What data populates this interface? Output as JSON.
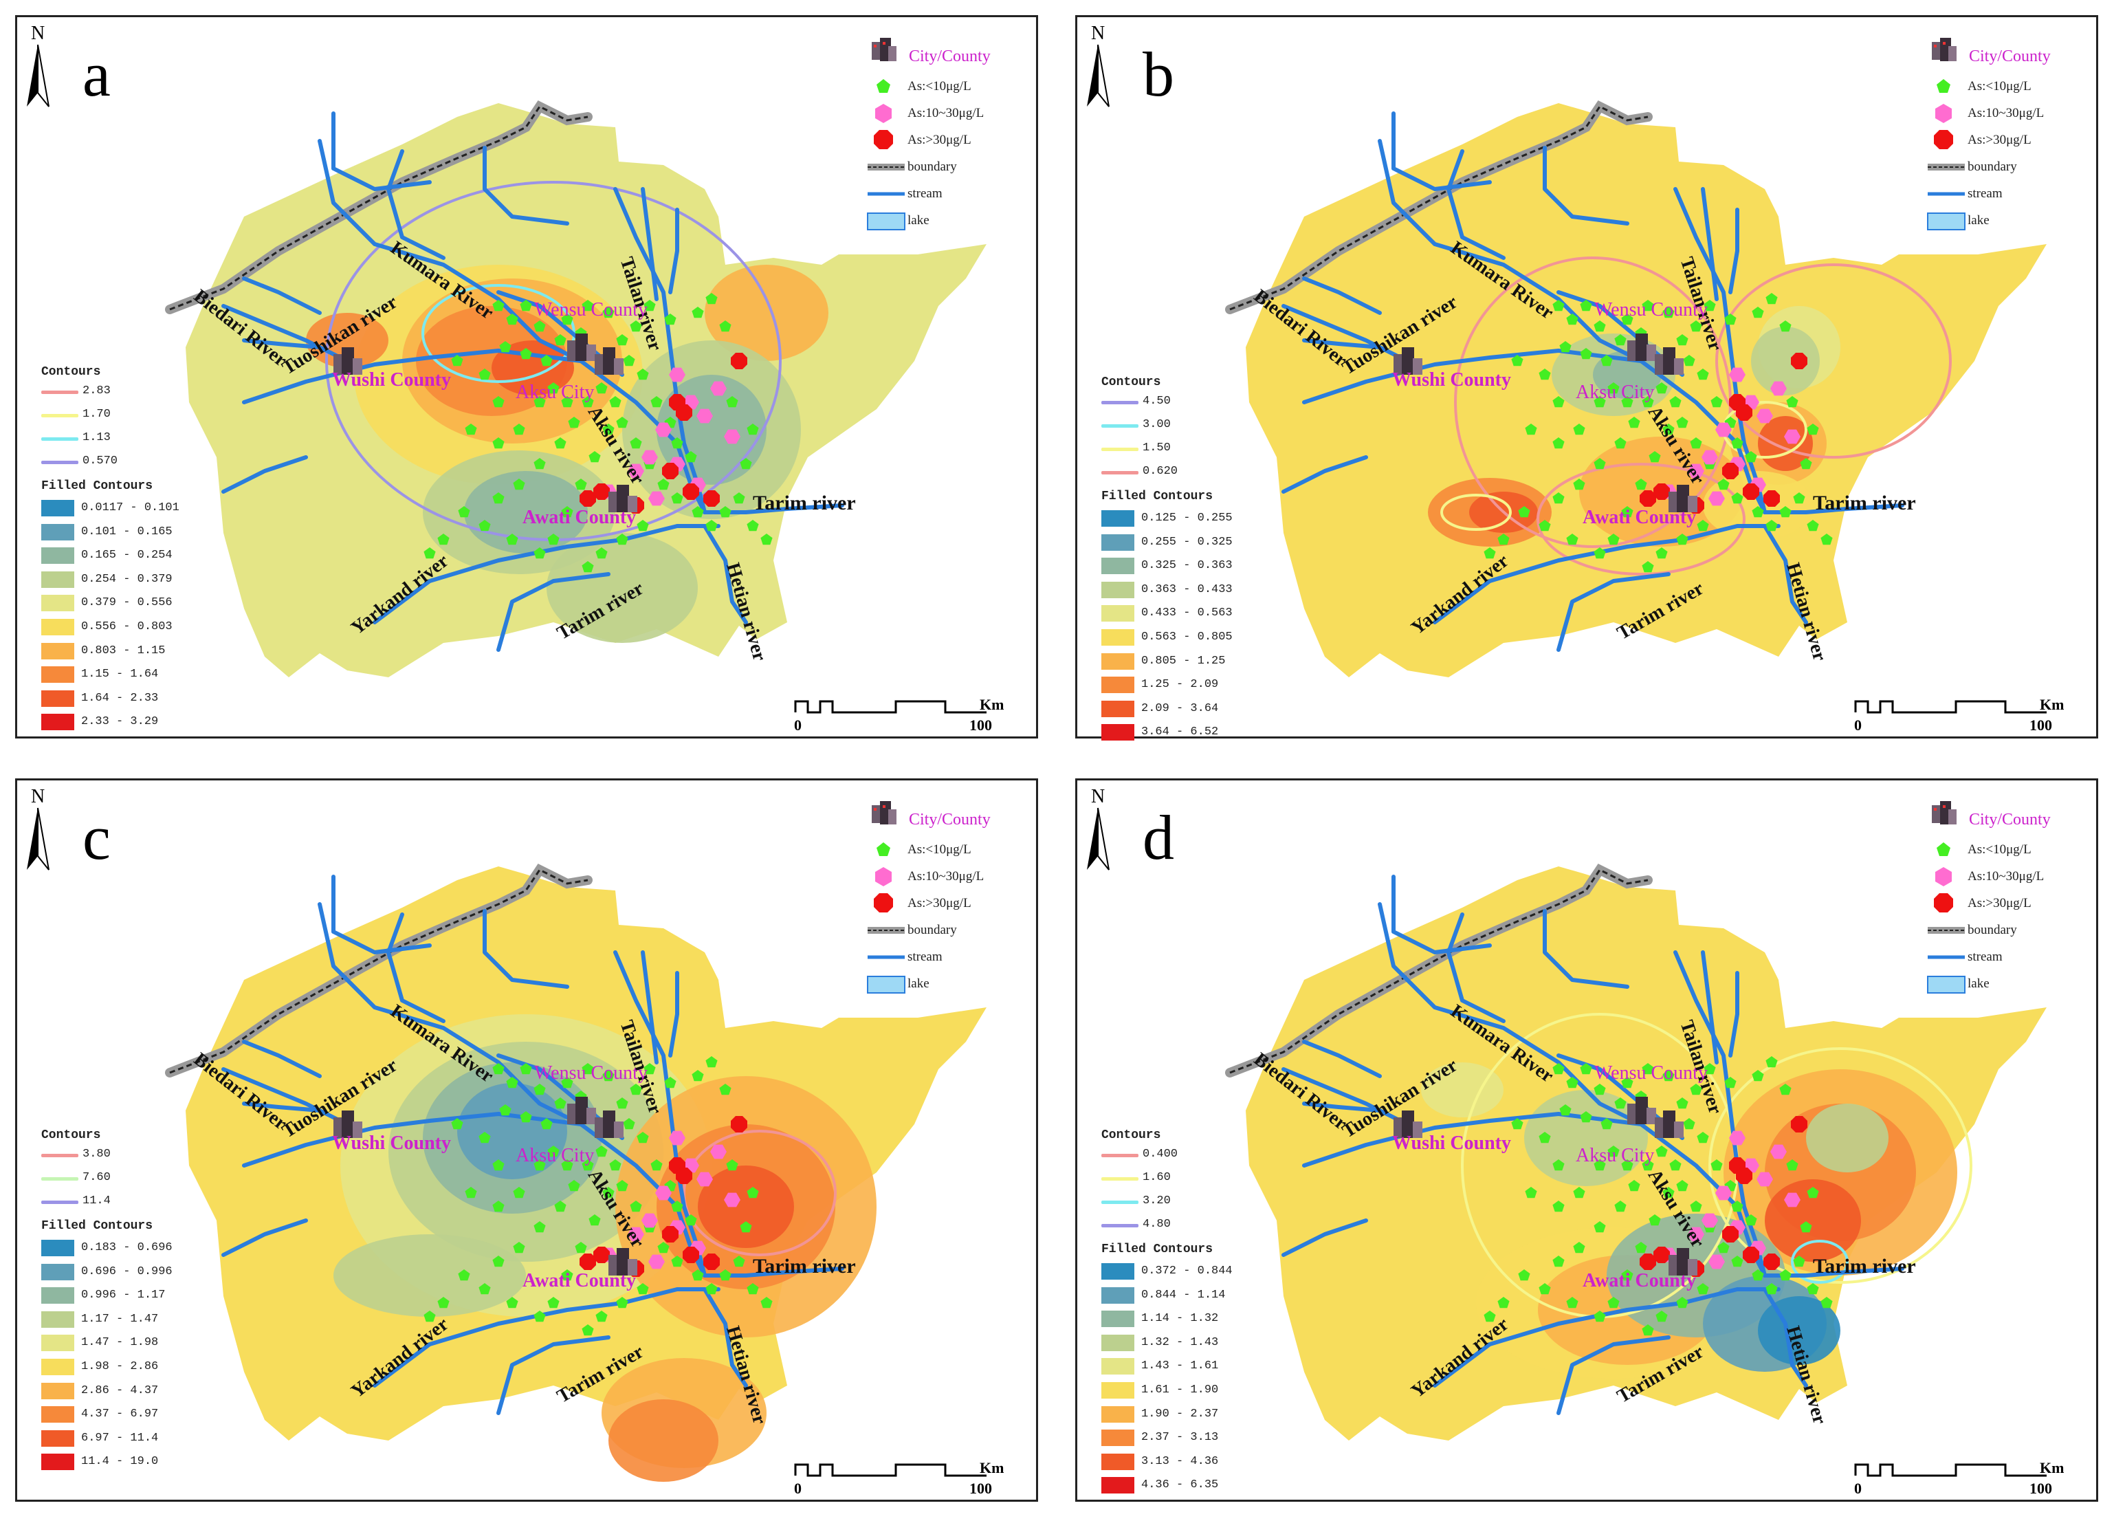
{
  "legend_common": {
    "city": "City/County",
    "as_low": "As:<10μg/L",
    "as_mid": "As:10~30μg/L",
    "as_high": "As:>30μg/L",
    "boundary": "boundary",
    "stream": "stream",
    "lake": "lake"
  },
  "north": "N",
  "scale": {
    "zero": "0",
    "hundred": "100",
    "unit": "Km"
  },
  "labels": {
    "contours": "Contours",
    "filled": "Filled Contours",
    "kumara": "Kumara River",
    "tuoshikan": "Tuoshikan river",
    "biedari": "Biedari River",
    "tailan": "Tailan river",
    "aksu_river": "Aksu river",
    "tarim1": "Tarim river",
    "tarim2": "Tarim river",
    "yarkand": "Yarkand river",
    "hetian": "Hetian river",
    "wushi": "Wushi County",
    "wensu": "Wensu County",
    "aksu_city": "Aksu City",
    "awati": "Awati County"
  },
  "colors": {
    "fill_ramp": [
      "#2b8cbe",
      "#5f9fb8",
      "#8fb7a0",
      "#bcd08e",
      "#e4e586",
      "#f7dd5c",
      "#f9b24a",
      "#f6893a",
      "#f05a28",
      "#e31a1c"
    ],
    "map_bg": "#f7dd5c",
    "stream": "#2a7ddc",
    "green": "#44ee22",
    "pink": "#ff6cd0",
    "red": "#ee1111"
  },
  "panels": [
    {
      "id": "a",
      "bg": "#e4e586",
      "contours": [
        {
          "value": "2.83",
          "color": "#f29595"
        },
        {
          "value": "1.70",
          "color": "#f6f58c"
        },
        {
          "value": "1.13",
          "color": "#7deaf0"
        },
        {
          "value": "0.570",
          "color": "#9b93e6"
        }
      ],
      "filled": [
        "0.0117 - 0.101",
        "0.101 - 0.165",
        "0.165 - 0.254",
        "0.254 - 0.379",
        "0.379 - 0.556",
        "0.556 - 0.803",
        "0.803 - 1.15",
        "1.15 - 1.64",
        "1.64 - 2.33",
        "2.33 - 3.29"
      ]
    },
    {
      "id": "b",
      "bg": "#f7dd5c",
      "contours": [
        {
          "value": "4.50",
          "color": "#9b93e6"
        },
        {
          "value": "3.00",
          "color": "#7deaf0"
        },
        {
          "value": "1.50",
          "color": "#f6f58c"
        },
        {
          "value": "0.620",
          "color": "#f29595"
        }
      ],
      "filled": [
        "0.125 - 0.255",
        "0.255 - 0.325",
        "0.325 - 0.363",
        "0.363 - 0.433",
        "0.433 - 0.563",
        "0.563 - 0.805",
        "0.805 - 1.25",
        "1.25 - 2.09",
        "2.09 - 3.64",
        "3.64 - 6.52"
      ]
    },
    {
      "id": "c",
      "bg": "#f7dd5c",
      "contours": [
        {
          "value": "3.80",
          "color": "#f29595"
        },
        {
          "value": "7.60",
          "color": "#c6f5b4"
        },
        {
          "value": "11.4",
          "color": "#9b93e6"
        }
      ],
      "filled": [
        "0.183 - 0.696",
        "0.696 - 0.996",
        "0.996 - 1.17",
        "1.17 - 1.47",
        "1.47 - 1.98",
        "1.98 - 2.86",
        "2.86 - 4.37",
        "4.37 - 6.97",
        "6.97 - 11.4",
        "11.4 - 19.0"
      ]
    },
    {
      "id": "d",
      "bg": "#f7dd5c",
      "contours": [
        {
          "value": "0.400",
          "color": "#f29595"
        },
        {
          "value": "1.60",
          "color": "#f6f58c"
        },
        {
          "value": "3.20",
          "color": "#7deaf0"
        },
        {
          "value": "4.80",
          "color": "#9b93e6"
        }
      ],
      "filled": [
        "0.372 - 0.844",
        "0.844 - 1.14",
        "1.14 - 1.32",
        "1.32 - 1.43",
        "1.43 - 1.61",
        "1.61 - 1.90",
        "1.90 - 2.37",
        "2.37 - 3.13",
        "3.13 - 4.36",
        "4.36 - 6.35"
      ]
    }
  ]
}
